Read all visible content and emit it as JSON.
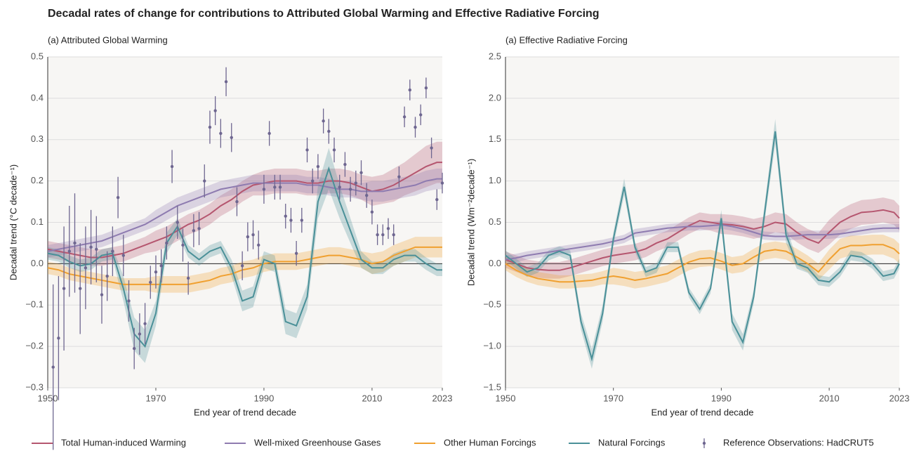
{
  "title": "Decadal rates of change for contributions to Attributed Global Warming and Effective Radiative Forcing",
  "legend": {
    "position": "bottom"
  },
  "chart_data": [
    {
      "type": "line",
      "title": "(a) Attributed Global Warming",
      "xlabel": "End year of trend decade",
      "ylabel": "Decadal trend (°C decade⁻¹)",
      "xlim": [
        1950,
        2023
      ],
      "ylim": [
        -0.3,
        0.5
      ],
      "xticks": [
        1950,
        1970,
        1990,
        2010,
        2023
      ],
      "yticks": [
        {
          "value": -0.3,
          "label": "−0.3"
        },
        {
          "value": -0.2,
          "label": "−0.2"
        },
        {
          "value": -0.1,
          "label": "−0.1"
        },
        {
          "value": 0,
          "label": "0.0"
        },
        0.1,
        0.2,
        0.3,
        0.4,
        0.5
      ],
      "grid": true,
      "x": [
        1950,
        1952,
        1954,
        1956,
        1958,
        1960,
        1962,
        1964,
        1966,
        1968,
        1970,
        1972,
        1974,
        1976,
        1978,
        1980,
        1982,
        1984,
        1986,
        1988,
        1990,
        1992,
        1994,
        1996,
        1998,
        2000,
        2002,
        2004,
        2006,
        2008,
        2010,
        2012,
        2014,
        2016,
        2018,
        2020,
        2022,
        2023
      ],
      "series": [
        {
          "name": "Total Human-induced Warming",
          "color": "#b5566f",
          "values": [
            0.035,
            0.03,
            0.025,
            0.02,
            0.015,
            0.015,
            0.02,
            0.025,
            0.035,
            0.045,
            0.055,
            0.065,
            0.08,
            0.095,
            0.105,
            0.12,
            0.14,
            0.155,
            0.175,
            0.19,
            0.195,
            0.2,
            0.2,
            0.2,
            0.195,
            0.195,
            0.2,
            0.2,
            0.195,
            0.185,
            0.175,
            0.18,
            0.19,
            0.205,
            0.22,
            0.235,
            0.245,
            0.245
          ],
          "errors": [
            0.02,
            0.02,
            0.02,
            0.02,
            0.02,
            0.02,
            0.02,
            0.02,
            0.02,
            0.02,
            0.025,
            0.025,
            0.025,
            0.025,
            0.025,
            0.025,
            0.025,
            0.025,
            0.025,
            0.025,
            0.03,
            0.03,
            0.03,
            0.03,
            0.03,
            0.03,
            0.03,
            0.03,
            0.03,
            0.03,
            0.035,
            0.035,
            0.04,
            0.04,
            0.045,
            0.05,
            0.05,
            0.05
          ]
        },
        {
          "name": "Well-mixed Greenhouse Gases",
          "color": "#8e7bb0",
          "values": [
            0.03,
            0.035,
            0.04,
            0.045,
            0.05,
            0.055,
            0.065,
            0.075,
            0.085,
            0.095,
            0.11,
            0.125,
            0.14,
            0.15,
            0.16,
            0.17,
            0.18,
            0.185,
            0.19,
            0.195,
            0.195,
            0.195,
            0.195,
            0.195,
            0.19,
            0.19,
            0.185,
            0.18,
            0.18,
            0.175,
            0.175,
            0.175,
            0.18,
            0.185,
            0.19,
            0.2,
            0.205,
            0.205
          ],
          "errors": [
            0.015,
            0.015,
            0.015,
            0.015,
            0.015,
            0.015,
            0.015,
            0.015,
            0.015,
            0.015,
            0.02,
            0.02,
            0.02,
            0.02,
            0.02,
            0.02,
            0.02,
            0.02,
            0.02,
            0.02,
            0.02,
            0.02,
            0.02,
            0.02,
            0.02,
            0.02,
            0.02,
            0.02,
            0.02,
            0.02,
            0.025,
            0.025,
            0.025,
            0.025,
            0.025,
            0.025,
            0.025,
            0.025
          ]
        },
        {
          "name": "Other Human Forcings",
          "color": "#f0a030",
          "values": [
            -0.01,
            -0.015,
            -0.025,
            -0.03,
            -0.035,
            -0.04,
            -0.045,
            -0.05,
            -0.05,
            -0.05,
            -0.05,
            -0.05,
            -0.05,
            -0.05,
            -0.045,
            -0.04,
            -0.03,
            -0.025,
            -0.015,
            -0.01,
            0,
            0.005,
            0.005,
            0.005,
            0.01,
            0.015,
            0.02,
            0.02,
            0.015,
            0.01,
            0,
            0.005,
            0.02,
            0.03,
            0.04,
            0.04,
            0.04,
            0.04
          ],
          "errors": [
            0.015,
            0.015,
            0.015,
            0.015,
            0.015,
            0.015,
            0.015,
            0.015,
            0.015,
            0.015,
            0.02,
            0.02,
            0.02,
            0.02,
            0.02,
            0.02,
            0.02,
            0.02,
            0.02,
            0.02,
            0.02,
            0.02,
            0.02,
            0.02,
            0.02,
            0.02,
            0.02,
            0.02,
            0.02,
            0.02,
            0.025,
            0.025,
            0.025,
            0.025,
            0.025,
            0.025,
            0.025,
            0.025
          ]
        },
        {
          "name": "Natural Forcings",
          "color": "#4a9098",
          "values": [
            0.025,
            0.02,
            0.005,
            -0.005,
            0,
            0.02,
            0.025,
            -0.06,
            -0.17,
            -0.2,
            -0.12,
            0.05,
            0.09,
            0.03,
            0.01,
            0.03,
            0.04,
            -0.01,
            -0.09,
            -0.08,
            0.01,
            0,
            -0.14,
            -0.15,
            -0.08,
            0.15,
            0.23,
            0.15,
            0.08,
            0.01,
            -0.01,
            -0.01,
            0.01,
            0.02,
            0.02,
            0,
            -0.015,
            -0.015
          ],
          "errors": [
            0.015,
            0.015,
            0.015,
            0.015,
            0.015,
            0.015,
            0.015,
            0.03,
            0.04,
            0.04,
            0.03,
            0.025,
            0.02,
            0.015,
            0.015,
            0.015,
            0.015,
            0.02,
            0.025,
            0.025,
            0.02,
            0.02,
            0.03,
            0.03,
            0.03,
            0.04,
            0.05,
            0.04,
            0.03,
            0.02,
            0.015,
            0.015,
            0.015,
            0.015,
            0.015,
            0.015,
            0.015,
            0.015
          ]
        }
      ],
      "observations": {
        "name": "Reference Observations: HadCRUT5",
        "color": "#6e6690",
        "x": [
          1951,
          1952,
          1953,
          1954,
          1955,
          1956,
          1957,
          1958,
          1959,
          1960,
          1961,
          1962,
          1963,
          1964,
          1965,
          1966,
          1967,
          1968,
          1969,
          1970,
          1971,
          1972,
          1973,
          1974,
          1975,
          1976,
          1977,
          1978,
          1979,
          1980,
          1981,
          1982,
          1983,
          1984,
          1985,
          1986,
          1987,
          1988,
          1989,
          1990,
          1991,
          1992,
          1993,
          1994,
          1995,
          1996,
          1997,
          1998,
          1999,
          2000,
          2001,
          2002,
          2003,
          2004,
          2005,
          2006,
          2007,
          2008,
          2009,
          2010,
          2011,
          2012,
          2013,
          2014,
          2015,
          2016,
          2017,
          2018,
          2019,
          2020,
          2021,
          2022,
          2023
        ],
        "values": [
          -0.25,
          -0.18,
          -0.06,
          0.03,
          0.05,
          -0.06,
          -0.01,
          0.04,
          0.035,
          -0.075,
          -0.03,
          0.03,
          0.16,
          0.02,
          -0.09,
          -0.205,
          -0.17,
          -0.145,
          -0.045,
          -0.02,
          -0.005,
          0.05,
          0.235,
          0.1,
          0.045,
          -0.035,
          0.08,
          0.085,
          0.2,
          0.33,
          0.37,
          0.315,
          0.44,
          0.305,
          0.15,
          -0.005,
          0.065,
          0.07,
          0.045,
          0.18,
          0.315,
          0.185,
          0.185,
          0.115,
          0.105,
          0.025,
          0.105,
          0.275,
          0.2,
          0.235,
          0.345,
          0.32,
          0.275,
          0.185,
          0.24,
          0.18,
          0.195,
          0.22,
          0.165,
          0.125,
          0.07,
          0.07,
          0.085,
          0.07,
          0.21,
          0.355,
          0.42,
          0.33,
          0.36,
          0.425,
          0.28,
          0.155,
          0.195
        ],
        "errors": [
          0.2,
          0.15,
          0.15,
          0.11,
          0.12,
          0.11,
          0.1,
          0.09,
          0.08,
          0.07,
          0.06,
          0.06,
          0.05,
          0.05,
          0.05,
          0.05,
          0.05,
          0.05,
          0.04,
          0.04,
          0.04,
          0.04,
          0.04,
          0.04,
          0.04,
          0.04,
          0.04,
          0.04,
          0.04,
          0.04,
          0.035,
          0.035,
          0.035,
          0.035,
          0.035,
          0.035,
          0.035,
          0.035,
          0.035,
          0.035,
          0.03,
          0.03,
          0.03,
          0.03,
          0.03,
          0.03,
          0.03,
          0.03,
          0.03,
          0.03,
          0.03,
          0.03,
          0.03,
          0.03,
          0.03,
          0.03,
          0.03,
          0.03,
          0.03,
          0.03,
          0.025,
          0.025,
          0.025,
          0.025,
          0.025,
          0.025,
          0.025,
          0.025,
          0.025,
          0.025,
          0.025,
          0.025,
          0.025
        ]
      }
    },
    {
      "type": "line",
      "title": "(a) Effective Radiative Forcing",
      "xlabel": "End year of trend decade",
      "ylabel": "Decadal trend (Wm⁻²decade⁻¹)",
      "xlim": [
        1950,
        2023
      ],
      "ylim": [
        -1.5,
        2.5
      ],
      "xticks": [
        1950,
        1970,
        1990,
        2010,
        2023
      ],
      "yticks": [
        {
          "value": -1.5,
          "label": "−1.5"
        },
        {
          "value": -1,
          "label": "−1.0"
        },
        {
          "value": -0.5,
          "label": "−0.5"
        },
        {
          "value": 0,
          "label": "0.0"
        },
        0.5,
        {
          "value": 1,
          "label": "1.0"
        },
        1.5,
        {
          "value": 2,
          "label": "2.0"
        },
        2.5
      ],
      "grid": true,
      "x": [
        1950,
        1952,
        1954,
        1956,
        1958,
        1960,
        1962,
        1964,
        1966,
        1968,
        1970,
        1972,
        1974,
        1976,
        1978,
        1980,
        1982,
        1984,
        1986,
        1988,
        1990,
        1992,
        1994,
        1996,
        1998,
        2000,
        2002,
        2004,
        2006,
        2008,
        2010,
        2012,
        2014,
        2016,
        2018,
        2020,
        2022,
        2023
      ],
      "series": [
        {
          "color": "#b5566f",
          "values": [
            0.05,
            0,
            -0.05,
            -0.07,
            -0.08,
            -0.08,
            -0.05,
            -0.01,
            0.03,
            0.07,
            0.1,
            0.12,
            0.14,
            0.18,
            0.25,
            0.3,
            0.38,
            0.46,
            0.52,
            0.5,
            0.48,
            0.47,
            0.45,
            0.42,
            0.45,
            0.5,
            0.48,
            0.38,
            0.3,
            0.25,
            0.38,
            0.5,
            0.57,
            0.62,
            0.63,
            0.65,
            0.62,
            0.55
          ],
          "errors": [
            0.1,
            0.1,
            0.1,
            0.1,
            0.1,
            0.1,
            0.1,
            0.1,
            0.1,
            0.1,
            0.1,
            0.1,
            0.1,
            0.1,
            0.1,
            0.1,
            0.1,
            0.1,
            0.1,
            0.1,
            0.12,
            0.12,
            0.12,
            0.12,
            0.12,
            0.12,
            0.12,
            0.12,
            0.12,
            0.12,
            0.15,
            0.15,
            0.15,
            0.15,
            0.15,
            0.15,
            0.15,
            0.15
          ]
        },
        {
          "color": "#8e7bb0",
          "values": [
            0.05,
            0.07,
            0.1,
            0.12,
            0.14,
            0.16,
            0.18,
            0.2,
            0.22,
            0.24,
            0.27,
            0.3,
            0.37,
            0.39,
            0.41,
            0.43,
            0.44,
            0.45,
            0.45,
            0.46,
            0.47,
            0.45,
            0.42,
            0.38,
            0.34,
            0.33,
            0.33,
            0.34,
            0.35,
            0.35,
            0.35,
            0.36,
            0.38,
            0.4,
            0.42,
            0.43,
            0.43,
            0.43
          ],
          "errors": [
            0.05,
            0.05,
            0.05,
            0.05,
            0.05,
            0.05,
            0.05,
            0.05,
            0.05,
            0.05,
            0.05,
            0.05,
            0.05,
            0.05,
            0.05,
            0.05,
            0.05,
            0.05,
            0.05,
            0.05,
            0.05,
            0.05,
            0.05,
            0.05,
            0.05,
            0.05,
            0.05,
            0.05,
            0.05,
            0.05,
            0.05,
            0.05,
            0.05,
            0.05,
            0.05,
            0.05,
            0.05,
            0.05
          ]
        },
        {
          "color": "#f0a030",
          "values": [
            0,
            -0.08,
            -0.14,
            -0.18,
            -0.2,
            -0.22,
            -0.22,
            -0.21,
            -0.2,
            -0.17,
            -0.15,
            -0.17,
            -0.2,
            -0.18,
            -0.15,
            -0.12,
            -0.05,
            0.02,
            0.06,
            0.07,
            0.03,
            -0.02,
            0,
            0.08,
            0.15,
            0.17,
            0.15,
            0.08,
            0,
            -0.1,
            0.05,
            0.18,
            0.22,
            0.22,
            0.23,
            0.23,
            0.18,
            0.12
          ],
          "errors": [
            0.08,
            0.08,
            0.08,
            0.08,
            0.08,
            0.08,
            0.08,
            0.08,
            0.08,
            0.08,
            0.1,
            0.1,
            0.1,
            0.1,
            0.1,
            0.1,
            0.1,
            0.1,
            0.1,
            0.1,
            0.1,
            0.1,
            0.1,
            0.1,
            0.1,
            0.1,
            0.1,
            0.1,
            0.1,
            0.1,
            0.12,
            0.12,
            0.12,
            0.12,
            0.12,
            0.12,
            0.12,
            0.12
          ]
        },
        {
          "color": "#4a9098",
          "values": [
            0.1,
            0,
            -0.1,
            -0.05,
            0.1,
            0.15,
            0.1,
            -0.7,
            -1.15,
            -0.6,
            0.3,
            0.93,
            0.2,
            -0.1,
            -0.05,
            0.2,
            0.2,
            -0.35,
            -0.55,
            -0.3,
            0.55,
            -0.7,
            -0.95,
            -0.4,
            0.6,
            1.6,
            0.35,
            0,
            -0.05,
            -0.2,
            -0.22,
            -0.1,
            0.1,
            0.08,
            0,
            -0.15,
            -0.12,
            0
          ],
          "errors": [
            0.06,
            0.06,
            0.06,
            0.06,
            0.06,
            0.06,
            0.06,
            0.1,
            0.12,
            0.1,
            0.08,
            0.1,
            0.06,
            0.06,
            0.06,
            0.06,
            0.06,
            0.06,
            0.06,
            0.06,
            0.1,
            0.1,
            0.1,
            0.08,
            0.1,
            0.15,
            0.1,
            0.06,
            0.06,
            0.06,
            0.06,
            0.06,
            0.06,
            0.06,
            0.06,
            0.06,
            0.06,
            0.06
          ]
        }
      ]
    }
  ]
}
